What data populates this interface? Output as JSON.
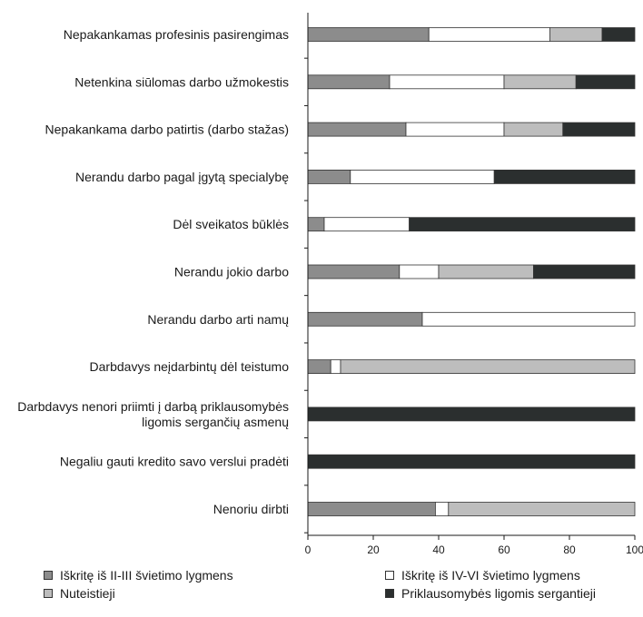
{
  "chart_data": {
    "type": "bar",
    "orientation": "horizontal",
    "stacked": true,
    "categories": [
      "Nepakankamas profesinis pasirengimas",
      "Netenkina siūlomas darbo užmokestis",
      "Nepakankama darbo patirtis (darbo stažas)",
      "Nerandu darbo pagal įgytą specialybę",
      "Dėl sveikatos būklės",
      "Nerandu jokio darbo",
      "Nerandu darbo arti namų",
      "Darbdavys neįdarbintų dėl teistumo",
      "Darbdavys nenori priimti į darbą priklausomybės ligomis sergančių asmenų",
      "Negaliu gauti kredito savo verslui pradėti",
      "Nenoriu dirbti"
    ],
    "category_lines": [
      [
        "Nepakankamas profesinis pasirengimas"
      ],
      [
        "Netenkina siūlomas darbo užmokestis"
      ],
      [
        "Nepakankama darbo patirtis (darbo stažas)"
      ],
      [
        "Nerandu darbo pagal įgytą specialybę"
      ],
      [
        "Dėl sveikatos būklės"
      ],
      [
        "Nerandu jokio darbo"
      ],
      [
        "Nerandu darbo arti namų"
      ],
      [
        "Darbdavys neįdarbintų dėl teistumo"
      ],
      [
        "Darbdavys nenori priimti į darbą priklausomybės",
        "ligomis sergančių asmenų"
      ],
      [
        "Negaliu gauti kredito savo verslui pradėti"
      ],
      [
        "Nenoriu dirbti"
      ]
    ],
    "series": [
      {
        "name": "Iškritę iš II-III švietimo lygmens",
        "color": "#8c8c8c",
        "values": [
          37,
          25,
          30,
          13,
          5,
          28,
          35,
          7,
          0,
          0,
          39
        ]
      },
      {
        "name": "Iškritę iš IV-VI švietimo lygmens",
        "color": "#ffffff",
        "values": [
          37,
          35,
          30,
          44,
          26,
          12,
          65,
          3,
          0,
          0,
          4
        ]
      },
      {
        "name": "Nuteistieji",
        "color": "#bdbdbd",
        "values": [
          16,
          22,
          18,
          0,
          0,
          29,
          0,
          90,
          0,
          0,
          57
        ]
      },
      {
        "name": "Priklausomybės ligomis sergantieji",
        "color": "#2b2f2f",
        "values": [
          10,
          18,
          22,
          43,
          69,
          31,
          0,
          0,
          100,
          100,
          0
        ]
      }
    ],
    "xlim": [
      0,
      100
    ],
    "xticks": [
      0,
      20,
      40,
      60,
      80,
      100
    ],
    "xlabel": "",
    "ylabel": "",
    "grid": false,
    "legend_position": "bottom"
  }
}
